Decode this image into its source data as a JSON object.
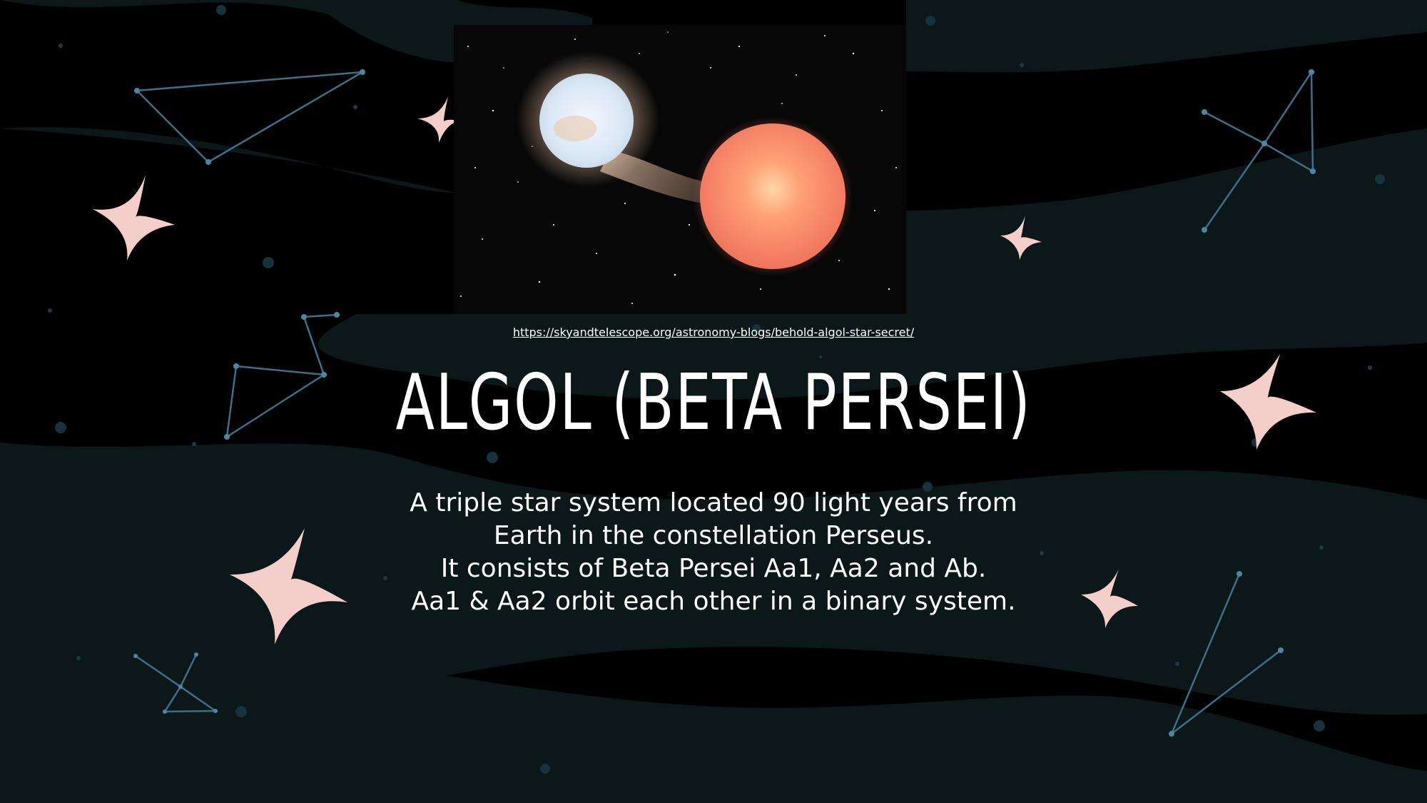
{
  "slide": {
    "image_link": "https://skyandtelescope.org/astronomy-blogs/behold-algol-star-secret/",
    "title": "ALGOL (BETA PERSEI)",
    "body_lines": [
      "A triple star system located 90 light years from",
      "Earth in the constellation Perseus.",
      "It consists of Beta Persei Aa1, Aa2 and Ab.",
      "Aa1 & Aa2 orbit each other in a binary system."
    ]
  },
  "theme": {
    "background": "#000000",
    "wave": "#0b1719",
    "sparkle": "#f4cfc9",
    "constellation": "#3f6f86",
    "text": "#ffffff"
  }
}
